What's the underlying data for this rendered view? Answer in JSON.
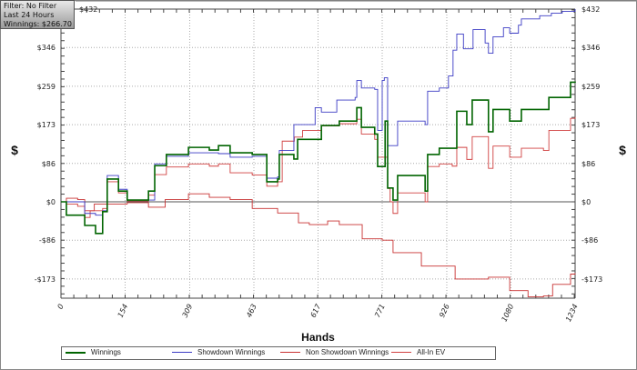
{
  "info": {
    "filter": "Filter: No Filter",
    "period": "Last  24 Hours",
    "winnings": "Winnings: $266.70"
  },
  "chart_data": {
    "type": "line",
    "xlabel": "Hands",
    "ylabel": "$",
    "ylabel_right": "$",
    "xlim": [
      0,
      1234
    ],
    "ylim": [
      -216,
      432
    ],
    "x_ticks": [
      0,
      154,
      309,
      463,
      617,
      771,
      926,
      1080,
      1234
    ],
    "x_tick_labels": [
      "0",
      "154",
      "309",
      "463",
      "617",
      "771",
      "926",
      "1080",
      "1234"
    ],
    "y_ticks": [
      -173,
      -86,
      0,
      86,
      173,
      259,
      346,
      432
    ],
    "y_tick_labels": [
      "-$173",
      "-$86",
      "$0",
      "$86",
      "$173",
      "$259",
      "$346",
      "$432"
    ],
    "grid": true,
    "legend_position": "bottom",
    "series": [
      {
        "name": "Winnings",
        "color": "#006400",
        "width": 1.6,
        "x": [
          0,
          13,
          57,
          83,
          100,
          111,
          138,
          159,
          210,
          225,
          253,
          306,
          356,
          378,
          406,
          459,
          494,
          520,
          524,
          559,
          568,
          625,
          668,
          710,
          721,
          753,
          760,
          778,
          784,
          797,
          808,
          874,
          880,
          908,
          939,
          950,
          974,
          987,
          1026,
          1037,
          1077,
          1105,
          1158,
          1171,
          1223,
          1234
        ],
        "y": [
          0,
          -30,
          -53,
          -71,
          -22,
          51,
          24,
          4,
          24,
          81,
          106,
          122,
          116,
          126,
          110,
          106,
          45,
          51,
          106,
          96,
          140,
          171,
          181,
          211,
          167,
          152,
          79,
          181,
          31,
          4,
          59,
          24,
          106,
          120,
          120,
          203,
          173,
          228,
          157,
          207,
          181,
          207,
          207,
          234,
          268,
          267
        ]
      },
      {
        "name": "Showdown Winnings",
        "color": "#3b3bc4",
        "width": 0.9,
        "x": [
          0,
          57,
          83,
          100,
          111,
          138,
          159,
          210,
          225,
          253,
          306,
          378,
          406,
          459,
          494,
          520,
          524,
          559,
          568,
          610,
          625,
          662,
          706,
          710,
          721,
          753,
          760,
          771,
          776,
          784,
          797,
          808,
          874,
          880,
          908,
          930,
          941,
          950,
          966,
          989,
          1018,
          1026,
          1037,
          1062,
          1077,
          1098,
          1105,
          1149,
          1177,
          1203,
          1234
        ],
        "y": [
          0,
          -26,
          -30,
          -20,
          59,
          28,
          4,
          4,
          85,
          102,
          110,
          108,
          100,
          102,
          53,
          56,
          115,
          173,
          173,
          211,
          201,
          228,
          234,
          272,
          255,
          252,
          160,
          272,
          278,
          126,
          126,
          181,
          173,
          248,
          255,
          282,
          340,
          376,
          343,
          386,
          356,
          333,
          370,
          390,
          378,
          396,
          410,
          417,
          423,
          427,
          432
        ]
      },
      {
        "name": "Non Showdown Winnings",
        "color": "#c83232",
        "width": 0.9,
        "x": [
          0,
          13,
          40,
          57,
          80,
          111,
          159,
          210,
          250,
          306,
          356,
          406,
          459,
          520,
          570,
          596,
          640,
          668,
          723,
          771,
          797,
          865,
          946,
          1026,
          1077,
          1121,
          1158,
          1180,
          1223,
          1234
        ],
        "y": [
          0,
          8,
          5,
          -20,
          -5,
          -5,
          -2,
          -12,
          5,
          18,
          10,
          5,
          -15,
          -25,
          -47,
          -51,
          -43,
          -51,
          -83,
          -86,
          -114,
          -144,
          -173,
          -169,
          -199,
          -213,
          -211,
          -185,
          -162,
          -160
        ]
      },
      {
        "name": "All-In EV",
        "color": "#d04040",
        "width": 0.9,
        "x": [
          0,
          13,
          40,
          57,
          70,
          100,
          111,
          138,
          159,
          210,
          225,
          253,
          306,
          356,
          378,
          406,
          459,
          494,
          520,
          531,
          560,
          580,
          625,
          640,
          668,
          710,
          721,
          753,
          760,
          778,
          784,
          790,
          797,
          808,
          874,
          880,
          908,
          939,
          950,
          974,
          987,
          1026,
          1037,
          1077,
          1105,
          1158,
          1171,
          1223,
          1234
        ],
        "y": [
          0,
          -5,
          -10,
          -35,
          -20,
          -15,
          45,
          20,
          2,
          15,
          61,
          78,
          85,
          80,
          85,
          65,
          60,
          35,
          45,
          136,
          145,
          160,
          170,
          170,
          175,
          185,
          152,
          140,
          100,
          100,
          30,
          0,
          -26,
          20,
          0,
          79,
          85,
          80,
          122,
          95,
          146,
          75,
          125,
          100,
          120,
          115,
          160,
          187,
          190
        ]
      }
    ]
  }
}
